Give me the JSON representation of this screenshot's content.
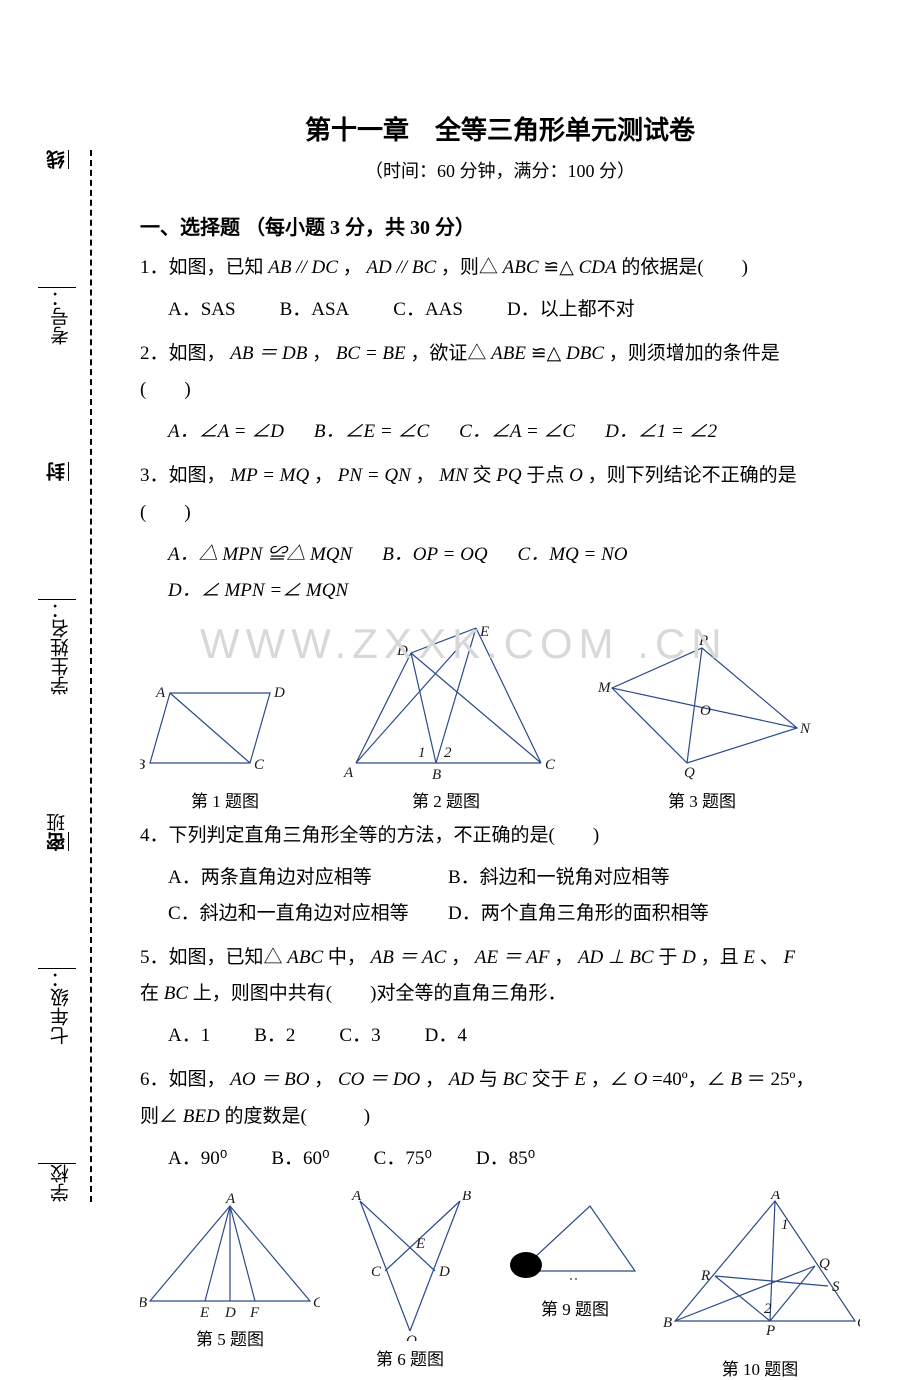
{
  "binding": {
    "school": "学校",
    "grade": "七年级：",
    "class": "班",
    "seal_mi": "密",
    "name": "学生姓名：",
    "seal_feng": "封",
    "exam_no": "考号：",
    "seal_xian": "线"
  },
  "title": "第十一章　全等三角形单元测试卷",
  "subtitle": "（时间：60 分钟，满分：100 分）",
  "section1": "一、选择题 （每小题 3 分，共 30 分）",
  "q1": {
    "stem_a": "1．如图，已知 ",
    "cond1": "AB // DC",
    "mid1": " ， ",
    "cond2": "AD // BC",
    "mid2": " ，则△ ",
    "tri1": "ABC",
    "cong": " ≌△ ",
    "tri2": "CDA",
    "tail": " 的依据是(　　)",
    "optA": "A．SAS",
    "optB": "B．ASA",
    "optC": "C．AAS",
    "optD": "D．以上都不对"
  },
  "q2": {
    "stem_a": "2．如图， ",
    "c1": "AB ＝ DB",
    "m1": " ， ",
    "c2": "BC = BE",
    "m2": " ，欲证△ ",
    "t1": "ABE",
    "cong": " ≌△ ",
    "t2": "DBC",
    "tail": " ，则须增加的条件是",
    "paren": "(　　)",
    "optA": "A．∠A = ∠D",
    "optB": "B．∠E = ∠C",
    "optC": "C．∠A = ∠C",
    "optD": "D．∠1 = ∠2"
  },
  "q3": {
    "stem_a": "3．如图， ",
    "c1": "MP = MQ",
    "m1": " ， ",
    "c2": "PN = QN",
    "m2": " ， ",
    "c3": "MN",
    "m3": " 交 ",
    "c4": "PQ",
    "m4": " 于点 ",
    "c5": "O",
    "tail": " ，则下列结论不正确的是",
    "paren": "(　　)",
    "optA": "A．△ MPN ≌△ MQN",
    "optB": "B．OP = OQ",
    "optC": "C．MQ = NO",
    "optD": "D．∠ MPN =∠ MQN"
  },
  "figcaps": {
    "f1": "第 1 题图",
    "f2": "第 2 题图",
    "f3": "第 3 题图",
    "f5": "第 5 题图",
    "f6": "第 6 题图",
    "f9": "第 9 题图",
    "f10": "第 10 题图"
  },
  "q4": {
    "stem": "4．下列判定直角三角形全等的方法，不正确的是(　　)",
    "optA": "A．两条直角边对应相等",
    "optB": "B．斜边和一锐角对应相等",
    "optC": "C．斜边和一直角边对应相等",
    "optD": "D．两个直角三角形的面积相等"
  },
  "q5": {
    "line1a": "5．如图，已知△ ",
    "t1": "ABC",
    "l1b": " 中， ",
    "c1": "AB ＝ AC",
    "m1": " ， ",
    "c2": "AE ＝ AF",
    "m2": " ， ",
    "c3": "AD ⊥ BC",
    "m3": " 于 ",
    "c4": "D",
    "m4": " ，且 ",
    "c5": "E",
    "m5": " 、 ",
    "c6": "F",
    "line2a": "在 ",
    "c7": "BC",
    "l2b": " 上，则图中共有(　　)对全等的直角三角形．",
    "optA": "A．1",
    "optB": "B．2",
    "optC": "C．3",
    "optD": "D．4"
  },
  "q6": {
    "line1a": "6．如图， ",
    "c1": "AO ＝ BO",
    "m1": " ， ",
    "c2": "CO ＝ DO",
    "m2": " ， ",
    "c3": "AD",
    "m3": " 与 ",
    "c4": "BC",
    "m4": " 交于 ",
    "c5": "E",
    "m5": " ，∠ ",
    "c6": "O",
    "m6": " =40º，∠ ",
    "c7": "B",
    "m7": " ＝ 25º，",
    "line2a": "则∠ ",
    "c8": "BED",
    "l2b": " 的度数是(　　　)",
    "optA": "A．90⁰",
    "optB": "B．60⁰",
    "optC": "C．75⁰",
    "optD": "D．85⁰"
  },
  "watermark": "WWW.ZXXK.COM .CN",
  "style": {
    "stroke": "#2a4a8a",
    "stroke_width": 1.2,
    "label_color": "#1a1a1a",
    "label_font": "italic 15px 'Times New Roman', serif"
  }
}
